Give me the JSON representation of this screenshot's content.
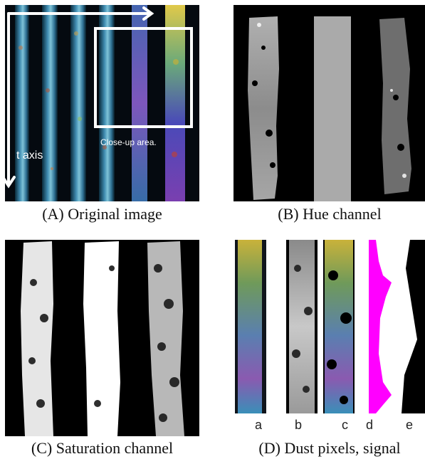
{
  "panels": {
    "a": {
      "caption": "(A) Original image",
      "overlay_text": "Close-up area.",
      "axis_text": "t axis"
    },
    "b": {
      "caption": "(B) Hue channel"
    },
    "c": {
      "caption": "(C) Saturation channel"
    },
    "d": {
      "caption": "(D) Dust pixels, signal",
      "sublabels": [
        "a",
        "b",
        "c",
        "d",
        "e"
      ]
    }
  },
  "colors": {
    "signal": "#ff00ff",
    "overlay": "#ffffff",
    "background": "#000000"
  }
}
